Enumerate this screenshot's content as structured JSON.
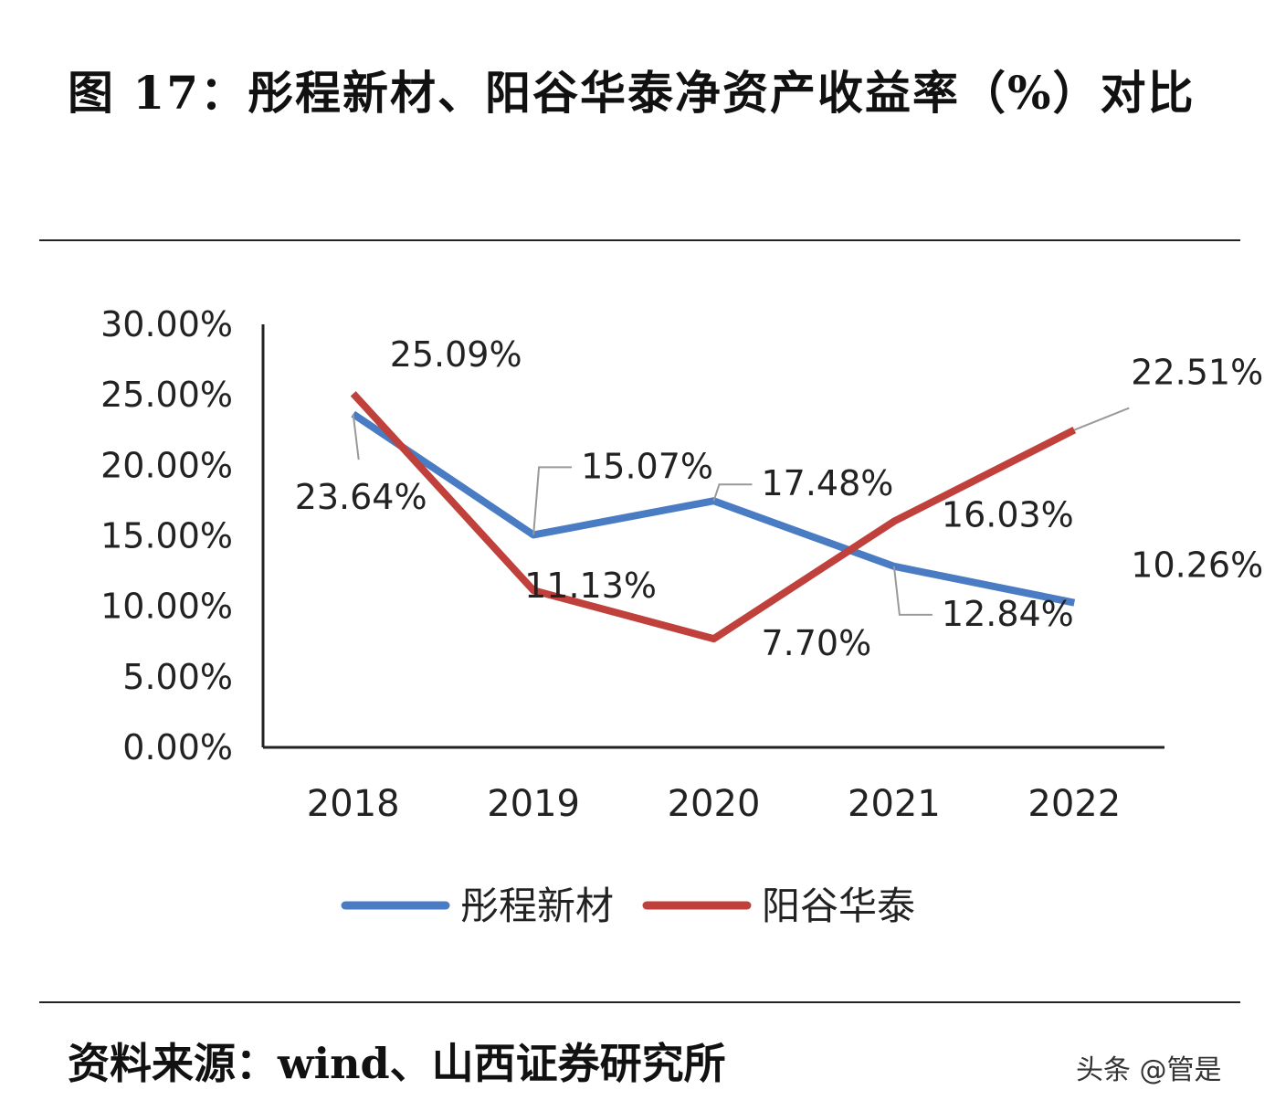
{
  "title": "图 17：彤程新材、阳谷华泰净资产收益率（%）对比",
  "source": "资料来源：wind、山西证券研究所",
  "watermark": "头条 @管是",
  "chart_data": {
    "type": "line",
    "title": "",
    "xlabel": "",
    "ylabel": "",
    "categories": [
      "2018",
      "2019",
      "2020",
      "2021",
      "2022"
    ],
    "ylim": [
      0,
      30
    ],
    "yticks": [
      "0.00%",
      "5.00%",
      "10.00%",
      "15.00%",
      "20.00%",
      "25.00%",
      "30.00%"
    ],
    "grid": false,
    "legend": "bottom",
    "series": [
      {
        "name": "彤程新材",
        "color": "#4a7cc4",
        "values": [
          23.64,
          15.07,
          17.48,
          12.84,
          10.26
        ],
        "labels": [
          "23.64%",
          "15.07%",
          "17.48%",
          "12.84%",
          "10.26%"
        ]
      },
      {
        "name": "阳谷华泰",
        "color": "#c0413c",
        "values": [
          25.09,
          11.13,
          7.7,
          16.03,
          22.51
        ],
        "labels": [
          "25.09%",
          "11.13%",
          "7.70%",
          "16.03%",
          "22.51%"
        ]
      }
    ]
  }
}
